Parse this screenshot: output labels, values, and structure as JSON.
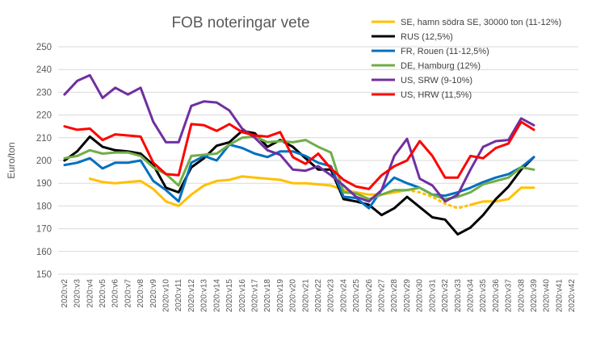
{
  "chart_data": {
    "type": "line",
    "title": "FOB noteringar vete",
    "ylabel": "Euro/ton",
    "xlabel": "",
    "ylim": [
      150,
      250
    ],
    "ytick_step": 10,
    "grid": true,
    "legend_position": "top-right",
    "categories": [
      "2020:v2",
      "2020:v3",
      "2020:v4",
      "2020:v5",
      "2020:v6",
      "2020:v7",
      "2020:v8",
      "2020:v9",
      "2020:v10",
      "2020:v11",
      "2020:v12",
      "2020:v13",
      "2020:v14",
      "2020:v15",
      "2020:v16",
      "2020:v17",
      "2020:v18",
      "2020:v19",
      "2020:v20",
      "2020:v21",
      "2020:v22",
      "2020:v23",
      "2020:v24",
      "2020:v25",
      "2020:v26",
      "2020:v27",
      "2020:v28",
      "2020:v29",
      "2020:v30",
      "2020:v31",
      "2020:v32",
      "2020:v33",
      "2020:v34",
      "2020:v35",
      "2020:v36",
      "2020:v37",
      "2020:v38",
      "2020:v39",
      "2020:v40",
      "2020:v41",
      "2020:v42"
    ],
    "series": [
      {
        "name": "SE, hamn södra SE, 30000 ton (11-12%)",
        "color": "#FFC000",
        "dashed_segment": [
          27,
          31
        ],
        "values": [
          null,
          null,
          192,
          190.5,
          190,
          190.5,
          191,
          187.5,
          182,
          180,
          185,
          189,
          191,
          191.5,
          193,
          192.5,
          192,
          191.5,
          190,
          190,
          189.5,
          189,
          187,
          186,
          185,
          185,
          186,
          187,
          186,
          184,
          181,
          179,
          180.5,
          182,
          182,
          183,
          188,
          188,
          null,
          null,
          null
        ]
      },
      {
        "name": "RUS (12,5%)",
        "color": "#000000",
        "values": [
          200,
          204,
          210.5,
          206,
          204.5,
          204,
          203,
          198,
          188,
          186,
          197,
          201,
          206.5,
          208,
          213,
          212,
          206,
          209,
          206,
          201,
          196,
          196,
          183,
          182,
          180.5,
          176,
          179,
          184,
          179.5,
          175,
          174,
          167.5,
          170.5,
          176,
          183,
          188.5,
          196,
          201.5,
          null,
          null,
          null
        ]
      },
      {
        "name": "FR, Rouen (11-12,5%)",
        "color": "#0070C0",
        "values": [
          198,
          199,
          201,
          196.5,
          199,
          199,
          200,
          191,
          187,
          182,
          199,
          202,
          200,
          207,
          205.5,
          203,
          201.5,
          204,
          204,
          202,
          199,
          197.5,
          184,
          183.5,
          179,
          187,
          192.5,
          190,
          188,
          185,
          184.5,
          186,
          188,
          190.5,
          192.5,
          194,
          197,
          201.5,
          null,
          null,
          null
        ]
      },
      {
        "name": "DE, Hamburg (12%)",
        "color": "#70AD47",
        "values": [
          201,
          202,
          204.5,
          203,
          203.5,
          203.5,
          202,
          197,
          194,
          189,
          202,
          202.5,
          203,
          207,
          210,
          210.5,
          208,
          208.5,
          208,
          209,
          206,
          203.5,
          186,
          185.5,
          183,
          185,
          187,
          187,
          188,
          185,
          183,
          184,
          186,
          189.5,
          191,
          192.5,
          197,
          196,
          null,
          null,
          null
        ]
      },
      {
        "name": "US, SRW (9-10%)",
        "color": "#7030A0",
        "values": [
          229,
          235,
          237.5,
          227.5,
          232,
          229,
          232,
          217,
          208,
          208,
          224,
          226,
          225.5,
          222,
          214,
          210,
          204.5,
          202.5,
          196,
          195.5,
          197.5,
          193.5,
          189,
          184,
          182,
          187,
          202,
          209.5,
          192,
          189,
          182,
          185,
          196,
          206,
          208.5,
          209,
          218.5,
          215.5,
          null,
          null,
          null
        ]
      },
      {
        "name": "US, HRW (11,5%)",
        "color": "#FF0000",
        "values": [
          215,
          213.5,
          214,
          209,
          211.5,
          211,
          210.5,
          199,
          194,
          193.5,
          216,
          215.5,
          213,
          216,
          212.5,
          211,
          210.5,
          212.5,
          201.5,
          198.5,
          203,
          196.5,
          191.5,
          188.5,
          187.5,
          193.5,
          197.5,
          200,
          208.5,
          202,
          192.5,
          192.5,
          202,
          201,
          205.5,
          207.5,
          217,
          213.5,
          null,
          null,
          null
        ]
      }
    ]
  }
}
